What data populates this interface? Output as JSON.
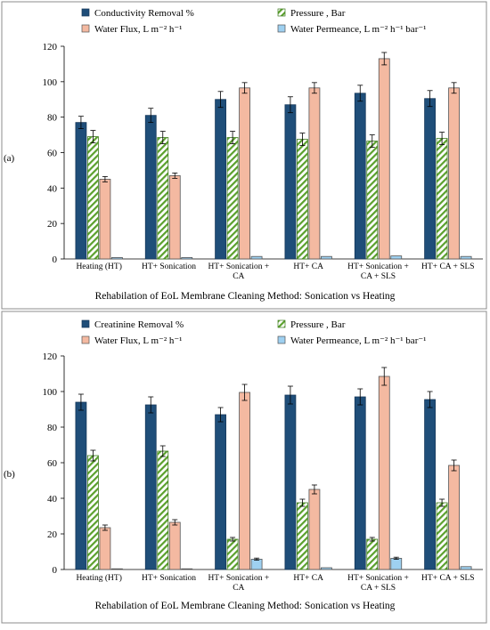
{
  "figure": {
    "colors": {
      "series1": "#1f4e79",
      "series2_hatch": "#5aa02c",
      "series3": "#f4b9a1",
      "series4": "#9ed0f0",
      "panel_border": "#8c8c8c"
    }
  },
  "chart_data": [
    {
      "type": "bar",
      "panel_label": "(a)",
      "xlabel": "Rehabilation of EoL Membrane Cleaning Method: Sonication vs Heating",
      "ylabel": "",
      "ylim": [
        0,
        120
      ],
      "yticks": [
        0,
        20,
        40,
        60,
        80,
        100,
        120
      ],
      "grid": false,
      "legend_position": "top",
      "categories": [
        "Heating (HT)",
        "HT+ Sonication",
        "HT+ Sonication + CA",
        "HT+ CA",
        "HT+ Sonication + CA + SLS",
        "HT+ CA + SLS"
      ],
      "category_lines": [
        [
          "Heating (HT)"
        ],
        [
          "HT+ Sonication"
        ],
        [
          "HT+ Sonication +",
          "CA"
        ],
        [
          "HT+ CA"
        ],
        [
          "HT+ Sonication +",
          "CA + SLS"
        ],
        [
          "HT+ CA + SLS"
        ]
      ],
      "series": [
        {
          "name": "Conductivity Removal %",
          "values": [
            77,
            81,
            90,
            87,
            93.5,
            90.5
          ],
          "errors": [
            3.5,
            4,
            4.5,
            4.5,
            4.5,
            4.5
          ]
        },
        {
          "name": "Pressure , Bar",
          "values": [
            69,
            68.5,
            68.5,
            67.5,
            66.5,
            68
          ],
          "errors": [
            3.5,
            3.5,
            3.5,
            3.5,
            3.5,
            3.5
          ]
        },
        {
          "name": "Water Flux, L m⁻²  h⁻¹",
          "values": [
            45,
            47,
            96.5,
            96.5,
            113,
            96.5
          ],
          "errors": [
            1.5,
            1.5,
            3,
            3,
            3.5,
            3
          ]
        },
        {
          "name": "Water Permeance, L m⁻²  h⁻¹  bar⁻¹",
          "values": [
            0.8,
            0.8,
            1.4,
            1.4,
            1.7,
            1.4
          ],
          "errors": [
            0,
            0,
            0,
            0,
            0,
            0
          ]
        }
      ]
    },
    {
      "type": "bar",
      "panel_label": "(b)",
      "xlabel": "Rehabilation of EoL Membrane Cleaning Method: Sonication vs Heating",
      "ylabel": "",
      "ylim": [
        0,
        120
      ],
      "yticks": [
        0,
        20,
        40,
        60,
        80,
        100,
        120
      ],
      "grid": false,
      "legend_position": "top",
      "categories": [
        "Heating (HT)",
        "HT+ Sonication",
        "HT+ Sonication + CA",
        "HT+ CA",
        "HT+ Sonication + CA + SLS",
        "HT+ CA + SLS"
      ],
      "category_lines": [
        [
          "Heating (HT)"
        ],
        [
          "HT+ Sonication"
        ],
        [
          "HT+ Sonication +",
          "CA"
        ],
        [
          "HT+ CA"
        ],
        [
          "HT+ Sonication +",
          "CA + SLS"
        ],
        [
          "HT+ CA + SLS"
        ]
      ],
      "series": [
        {
          "name": "Creatinine Removal %",
          "values": [
            94,
            92.5,
            87,
            98,
            97,
            95.5
          ],
          "errors": [
            4.5,
            4.5,
            4,
            5,
            4.5,
            4.5
          ]
        },
        {
          "name": "Pressure , Bar",
          "values": [
            64,
            66.5,
            17,
            37.5,
            17,
            37.5
          ],
          "errors": [
            3,
            3,
            1,
            2,
            1,
            2
          ]
        },
        {
          "name": "Water Flux, L m⁻²  h⁻¹",
          "values": [
            23.5,
            26.5,
            99.5,
            45,
            108.5,
            58.5
          ],
          "errors": [
            1.5,
            1.5,
            4.5,
            2.5,
            5,
            3
          ]
        },
        {
          "name": "Water Permeance, L m⁻²  h⁻¹  bar⁻¹",
          "values": [
            0.3,
            0.3,
            5.8,
            1,
            6.3,
            1.6
          ],
          "errors": [
            0,
            0,
            0.6,
            0,
            0.6,
            0
          ]
        }
      ]
    }
  ]
}
